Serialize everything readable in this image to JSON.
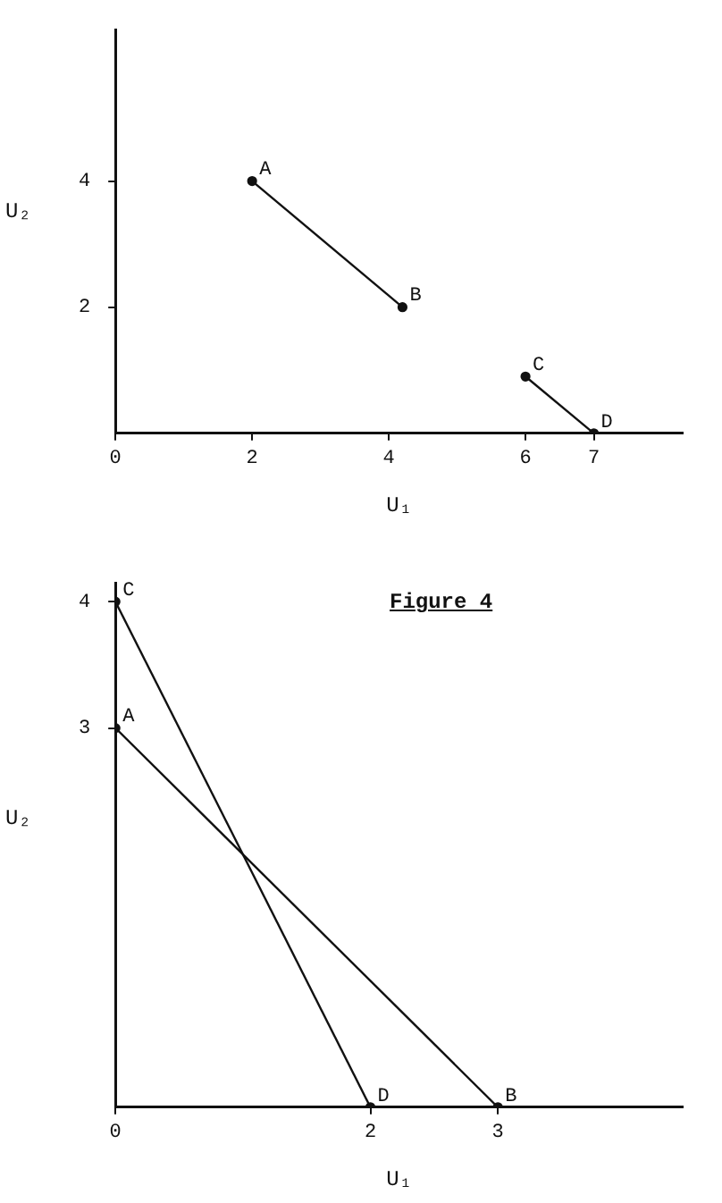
{
  "chart_data": [
    {
      "type": "line",
      "xlabel": "U₁",
      "ylabel": "U₂",
      "xlim": [
        0,
        8.3
      ],
      "ylim": [
        0,
        6.4
      ],
      "xticks": [
        0,
        2,
        4,
        6,
        7
      ],
      "yticks": [
        2,
        4
      ],
      "grid": false,
      "legend": false,
      "marker": "circle",
      "line_style": "solid",
      "series": [
        {
          "color": "#111111",
          "x": [
            2,
            4.2
          ],
          "values": [
            4,
            2
          ]
        },
        {
          "color": "#111111",
          "x": [
            6,
            7
          ],
          "values": [
            0.9,
            0
          ]
        }
      ],
      "annotations": [
        {
          "text": "A",
          "x": 2,
          "y": 4
        },
        {
          "text": "B",
          "x": 4.2,
          "y": 2
        },
        {
          "text": "C",
          "x": 6,
          "y": 0.9
        },
        {
          "text": "D",
          "x": 7,
          "y": 0
        }
      ]
    },
    {
      "type": "line",
      "title": "Figure 4",
      "xlabel": "U₁",
      "ylabel": "U₂",
      "xlim": [
        0,
        4.45
      ],
      "ylim": [
        0,
        4.15
      ],
      "xticks": [
        0,
        2,
        3
      ],
      "yticks": [
        3,
        4
      ],
      "grid": false,
      "legend": false,
      "marker": "circle",
      "line_style": "solid",
      "series": [
        {
          "color": "#111111",
          "x": [
            0,
            2
          ],
          "values": [
            4,
            0
          ]
        },
        {
          "color": "#111111",
          "x": [
            0,
            3
          ],
          "values": [
            3,
            0
          ]
        }
      ],
      "annotations": [
        {
          "text": "C",
          "x": 0,
          "y": 4
        },
        {
          "text": "A",
          "x": 0,
          "y": 3
        },
        {
          "text": "D",
          "x": 2,
          "y": 0
        },
        {
          "text": "B",
          "x": 3,
          "y": 0
        }
      ]
    }
  ]
}
